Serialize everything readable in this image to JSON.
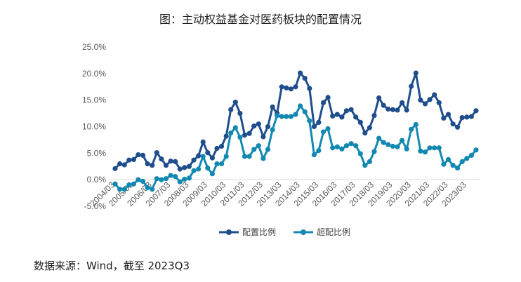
{
  "title": "图：主动权益基金对医药板块的配置情况",
  "source": "数据来源：Wind，截至 2023Q3",
  "chart_data": {
    "type": "line",
    "title": "图：主动权益基金对医药板块的配置情况",
    "xlabel": "",
    "ylabel": "",
    "ylim": [
      -0.05,
      0.25
    ],
    "yticks": [
      "25.0%",
      "20.0%",
      "15.0%",
      "10.0%",
      "5.0%",
      "0.0%",
      "-5.0%"
    ],
    "ytick_values": [
      0.25,
      0.2,
      0.15,
      0.1,
      0.05,
      0.0,
      -0.05
    ],
    "x_tick_labels": [
      "2004/03",
      "2005/03",
      "2006/03",
      "2007/03",
      "2008/03",
      "2009/03",
      "2010/03",
      "2011/03",
      "2012/03",
      "2013/03",
      "2014/03",
      "2015/03",
      "2016/03",
      "2017/03",
      "2018/03",
      "2019/03",
      "2020/03",
      "2021/03",
      "2022/03",
      "2023/03"
    ],
    "x_start": "2004Q1",
    "x_step": "quarter",
    "grid": false,
    "legend_position": "bottom",
    "series": [
      {
        "name": "配置比例",
        "color": "#1F4E8C",
        "values": [
          0.021,
          0.03,
          0.028,
          0.037,
          0.038,
          0.047,
          0.046,
          0.03,
          0.027,
          0.051,
          0.039,
          0.027,
          0.035,
          0.034,
          0.02,
          0.023,
          0.025,
          0.037,
          0.045,
          0.071,
          0.051,
          0.041,
          0.059,
          0.063,
          0.082,
          0.132,
          0.146,
          0.125,
          0.084,
          0.087,
          0.101,
          0.105,
          0.081,
          0.1,
          0.137,
          0.125,
          0.175,
          0.173,
          0.171,
          0.175,
          0.201,
          0.191,
          0.172,
          0.1,
          0.108,
          0.145,
          0.155,
          0.12,
          0.123,
          0.118,
          0.13,
          0.132,
          0.118,
          0.108,
          0.088,
          0.098,
          0.121,
          0.154,
          0.14,
          0.133,
          0.132,
          0.131,
          0.145,
          0.131,
          0.176,
          0.201,
          0.15,
          0.143,
          0.151,
          0.16,
          0.145,
          0.116,
          0.123,
          0.105,
          0.099,
          0.117,
          0.118,
          0.119,
          0.13
        ]
      },
      {
        "name": "超配比例",
        "color": "#1389B2",
        "values": [
          -0.008,
          -0.018,
          -0.018,
          -0.01,
          -0.008,
          0.0,
          -0.003,
          -0.015,
          -0.018,
          0.002,
          0.0,
          0.002,
          0.008,
          0.006,
          -0.004,
          0.001,
          0.003,
          0.017,
          0.02,
          0.044,
          0.022,
          0.011,
          0.03,
          0.03,
          0.044,
          0.088,
          0.098,
          0.08,
          0.044,
          0.044,
          0.057,
          0.064,
          0.04,
          0.057,
          0.094,
          0.121,
          0.119,
          0.119,
          0.119,
          0.123,
          0.139,
          0.128,
          0.111,
          0.047,
          0.055,
          0.09,
          0.096,
          0.06,
          0.062,
          0.058,
          0.064,
          0.068,
          0.064,
          0.049,
          0.027,
          0.034,
          0.053,
          0.078,
          0.07,
          0.066,
          0.063,
          0.062,
          0.074,
          0.058,
          0.095,
          0.104,
          0.054,
          0.052,
          0.06,
          0.06,
          0.06,
          0.029,
          0.038,
          0.027,
          0.022,
          0.034,
          0.04,
          0.046,
          0.056
        ]
      }
    ]
  }
}
